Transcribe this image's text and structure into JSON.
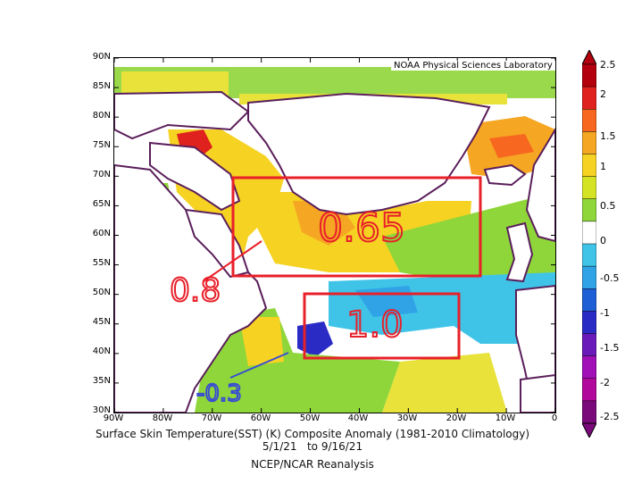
{
  "provider": "NOAA Physical Sciences Laboratory",
  "lat_labels": [
    "90N",
    "85N",
    "80N",
    "75N",
    "70N",
    "65N",
    "60N",
    "55N",
    "50N",
    "45N",
    "40N",
    "35N",
    "30N"
  ],
  "lon_labels": [
    "90W",
    "80W",
    "70W",
    "60W",
    "50W",
    "40W",
    "30W",
    "20W",
    "10W",
    "0"
  ],
  "title": "Surface Skin Temperature(SST) (K) Composite Anomaly (1981-2010 Climatology)",
  "dates": "5/1/21   to 9/16/21",
  "source": "NCEP/NCAR Reanalysis",
  "colorbar": {
    "labels": [
      "2.5",
      "2",
      "1.5",
      "1",
      "0.5",
      "0",
      "-0.5",
      "-1",
      "-1.5",
      "-2",
      "-2.5"
    ],
    "colors": [
      "#b2000e",
      "#e0221e",
      "#f7671f",
      "#f5a623",
      "#f6d223",
      "#d4e425",
      "#8ed63a",
      "#ffffff",
      "#3fc4e8",
      "#2fa3e6",
      "#1f5fd6",
      "#2a2bc4",
      "#6a1ab8",
      "#a010b6",
      "#b0089a",
      "#7a0a7a"
    ]
  },
  "annotations": {
    "box1_text": "0.65",
    "box2_text": "1.0",
    "left_text": "0.8",
    "south_text": "-0.3",
    "box_color": "#e8202a",
    "annotation_red": "#e8202a",
    "annotation_blue": "#3a4dd2"
  }
}
